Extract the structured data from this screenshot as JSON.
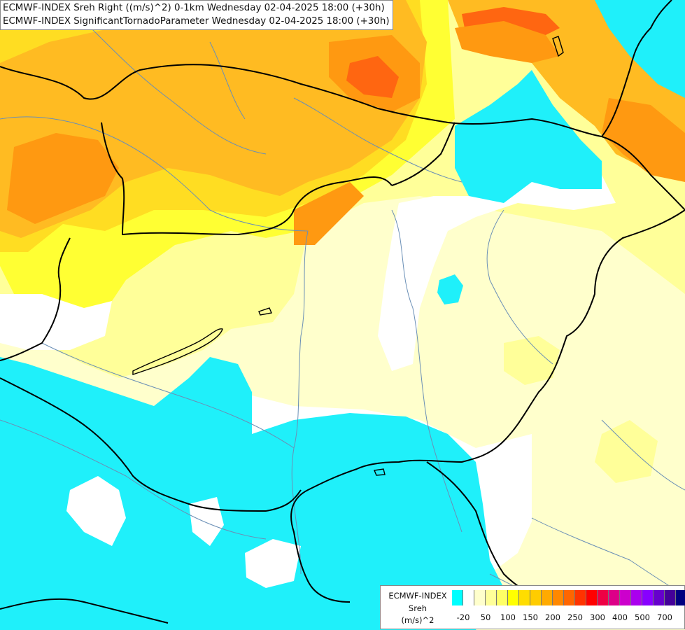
{
  "title": {
    "line1": "ECMWF-INDEX Sreh Right ((m/s)^2) 0-1km Wednesday 02-04-2025 18:00 (+30h)",
    "line2": "ECMWF-INDEX SignificantTornadoParameter Wednesday 02-04-2025 18:00 (+30h)"
  },
  "legend": {
    "header": "ECMWF-INDEX",
    "variable": "Sreh",
    "unit": "(m/s)^2",
    "colors": [
      "#00ffff",
      "#ffffff",
      "#ffffcc",
      "#ffff99",
      "#ffff66",
      "#ffff00",
      "#ffdd00",
      "#ffcc00",
      "#ffaa00",
      "#ff8800",
      "#ff6600",
      "#ff3300",
      "#ff0000",
      "#ee0044",
      "#dd0088",
      "#cc00cc",
      "#aa00ee",
      "#8800ff",
      "#6600cc",
      "#440099",
      "#000080"
    ],
    "ticks": [
      "-20",
      "50",
      "100",
      "150",
      "200",
      "250",
      "300",
      "400",
      "500",
      "700"
    ]
  },
  "colors": {
    "cyan": "#1ff0fa",
    "white": "#ffffff",
    "pale": "#ffffcc",
    "yellow1": "#ffff99",
    "yellow2": "#ffff33",
    "gold": "#ffdd22",
    "orange1": "#ffbb22",
    "orange2": "#ff9911",
    "orange3": "#ff6611"
  }
}
